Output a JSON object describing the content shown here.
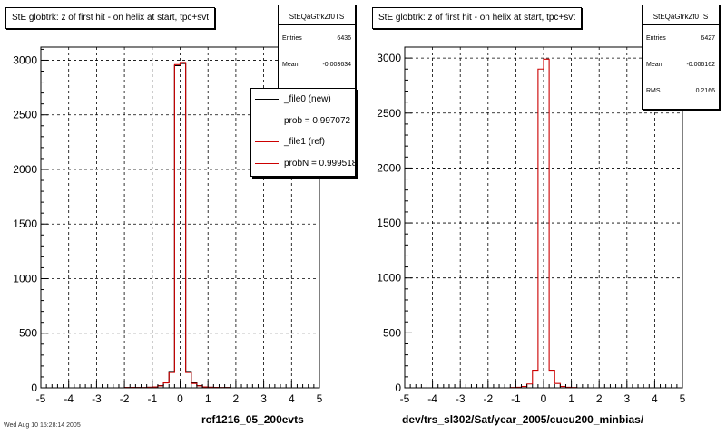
{
  "chart_data": [
    {
      "type": "histogram",
      "title": "StE globtrk: z of first hit - on helix at start, tpc+svt",
      "xlabel": "rcf1216_05_200evts",
      "xlim": [
        -5,
        5
      ],
      "ylim": [
        0,
        3120
      ],
      "x_ticks": [
        "-5",
        "-4",
        "-3",
        "-2",
        "-1",
        "0",
        "1",
        "2",
        "3",
        "4",
        "5"
      ],
      "y_ticks": [
        "0",
        "500",
        "1000",
        "1500",
        "2000",
        "2500",
        "3000"
      ],
      "grid": true,
      "bin_width": 0.2,
      "bin_start": -5,
      "stats": {
        "name": "StEQaGtrkZf0TS",
        "entries_label": "Entries",
        "entries": "6436",
        "mean_label": "Mean",
        "mean": "-0.003634"
      },
      "legend": {
        "placement": "top-right",
        "entries": [
          {
            "label": "_file0 (new)",
            "color": "#000000"
          },
          {
            "label": "prob = 0.997072",
            "color": "#000000"
          },
          {
            "label": "_file1 (ref)",
            "color": "#cc0000"
          },
          {
            "label": "probN = 0.999518",
            "color": "#cc0000"
          }
        ]
      },
      "series": [
        {
          "color": "#000000",
          "values": [
            0,
            0,
            0,
            0,
            0,
            0,
            0,
            0,
            0,
            0,
            0,
            0,
            0,
            0,
            0,
            3,
            3,
            3,
            2,
            5,
            8,
            20,
            50,
            150,
            2950,
            2970,
            150,
            45,
            20,
            8,
            5,
            3,
            2,
            3,
            0,
            0,
            0,
            0,
            0,
            0,
            0,
            0,
            0,
            0,
            0,
            0,
            0,
            0,
            0,
            0
          ]
        },
        {
          "color": "#cc0000",
          "values": [
            0,
            0,
            0,
            0,
            0,
            0,
            0,
            0,
            0,
            0,
            0,
            0,
            0,
            0,
            0,
            3,
            3,
            2,
            2,
            5,
            8,
            18,
            45,
            140,
            2960,
            2980,
            140,
            40,
            18,
            8,
            5,
            3,
            2,
            2,
            0,
            0,
            0,
            0,
            0,
            0,
            0,
            0,
            0,
            0,
            0,
            0,
            0,
            0,
            0,
            0
          ]
        }
      ]
    },
    {
      "type": "histogram",
      "title": "StE globtrk: z of first hit - on helix at start, tpc+svt",
      "xlabel": "dev/trs_sl302/Sat/year_2005/cucu200_minbias/",
      "xlim": [
        -5,
        5
      ],
      "ylim": [
        0,
        3100
      ],
      "x_ticks": [
        "-5",
        "-4",
        "-3",
        "-2",
        "-1",
        "0",
        "1",
        "2",
        "3",
        "4",
        "5"
      ],
      "y_ticks": [
        "0",
        "500",
        "1000",
        "1500",
        "2000",
        "2500",
        "3000"
      ],
      "grid": true,
      "bin_width": 0.2,
      "bin_start": -5,
      "stats": {
        "name": "StEQaGtrkZf0TS",
        "entries_label": "Entries",
        "entries": "6427",
        "mean_label": "Mean",
        "mean": "-0.006162",
        "rms_label": "RMS",
        "rms": "0.2166"
      },
      "series": [
        {
          "color": "#cc0000",
          "values": [
            0,
            0,
            0,
            0,
            0,
            0,
            0,
            0,
            0,
            0,
            0,
            0,
            0,
            0,
            0,
            0,
            0,
            0,
            0,
            3,
            5,
            12,
            35,
            160,
            2900,
            2990,
            160,
            40,
            12,
            5,
            3,
            0,
            0,
            0,
            0,
            0,
            0,
            0,
            0,
            0,
            0,
            0,
            0,
            0,
            0,
            0,
            0,
            0,
            0,
            0
          ]
        }
      ]
    }
  ],
  "footer": "Wed Aug 10 15:28:14 2005"
}
